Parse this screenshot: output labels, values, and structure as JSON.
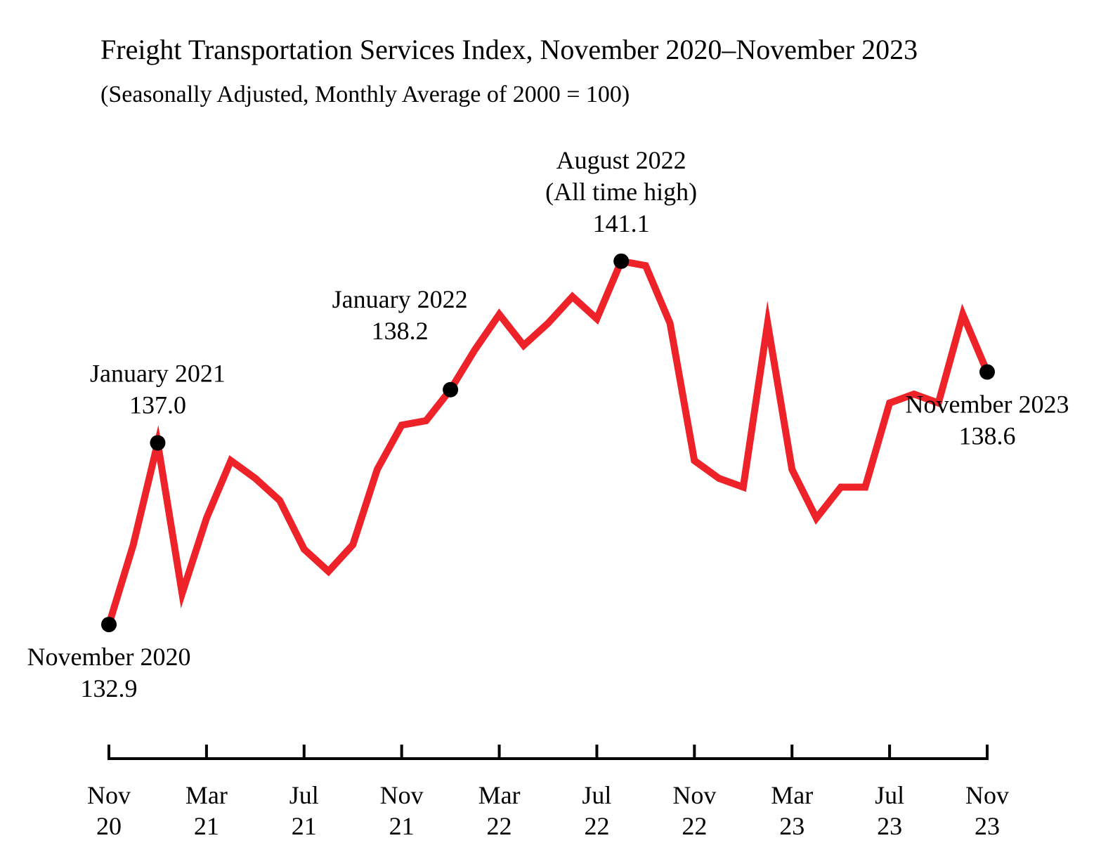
{
  "chart_data": {
    "type": "line",
    "title": "Freight Transportation Services Index, November 2020–November 2023",
    "subtitle": "(Seasonally Adjusted, Monthly Average of 2000 = 100)",
    "xlabel": "",
    "ylabel": "",
    "grid": false,
    "ylim": [
      130.0,
      143.0
    ],
    "x": [
      "Nov 2020",
      "Dec 2020",
      "Jan 2021",
      "Feb 2021",
      "Mar 2021",
      "Apr 2021",
      "May 2021",
      "Jun 2021",
      "Jul 2021",
      "Aug 2021",
      "Sep 2021",
      "Oct 2021",
      "Nov 2021",
      "Dec 2021",
      "Jan 2022",
      "Feb 2022",
      "Mar 2022",
      "Apr 2022",
      "May 2022",
      "Jun 2022",
      "Jul 2022",
      "Aug 2022",
      "Sep 2022",
      "Oct 2022",
      "Nov 2022",
      "Dec 2022",
      "Jan 2023",
      "Feb 2023",
      "Mar 2023",
      "Apr 2023",
      "May 2023",
      "Jun 2023",
      "Jul 2023",
      "Aug 2023",
      "Sep 2023",
      "Oct 2023",
      "Nov 2023"
    ],
    "series": [
      {
        "name": "Freight Transportation Services Index",
        "color": "#ee2229",
        "values": [
          132.9,
          134.7,
          137.0,
          133.6,
          135.3,
          136.6,
          136.2,
          135.7,
          134.6,
          134.1,
          134.7,
          136.4,
          137.4,
          137.5,
          138.2,
          139.1,
          139.9,
          139.2,
          139.7,
          140.3,
          139.8,
          141.1,
          141.0,
          139.7,
          136.6,
          136.2,
          136.0,
          139.7,
          136.4,
          135.3,
          136.0,
          136.0,
          137.9,
          138.1,
          137.9,
          139.9,
          138.6
        ]
      }
    ],
    "x_ticks": [
      {
        "month": "Nov",
        "year": "20",
        "index": 0
      },
      {
        "month": "Mar",
        "year": "21",
        "index": 4
      },
      {
        "month": "Jul",
        "year": "21",
        "index": 8
      },
      {
        "month": "Nov",
        "year": "21",
        "index": 12
      },
      {
        "month": "Mar",
        "year": "22",
        "index": 16
      },
      {
        "month": "Jul",
        "year": "22",
        "index": 20
      },
      {
        "month": "Nov",
        "year": "22",
        "index": 24
      },
      {
        "month": "Mar",
        "year": "23",
        "index": 28
      },
      {
        "month": "Jul",
        "year": "23",
        "index": 32
      },
      {
        "month": "Nov",
        "year": "23",
        "index": 36
      }
    ],
    "annotations": [
      {
        "index": 0,
        "lines": [
          "November 2020",
          "132.9"
        ],
        "placement": "below"
      },
      {
        "index": 2,
        "lines": [
          "January 2021",
          "137.0"
        ],
        "placement": "above"
      },
      {
        "index": 14,
        "lines": [
          "January 2022",
          "138.2"
        ],
        "placement": "above-left"
      },
      {
        "index": 21,
        "lines": [
          "August 2022",
          "(All time high)",
          "141.1"
        ],
        "placement": "above"
      },
      {
        "index": 36,
        "lines": [
          "November 2023",
          "138.6"
        ],
        "placement": "below"
      }
    ]
  }
}
